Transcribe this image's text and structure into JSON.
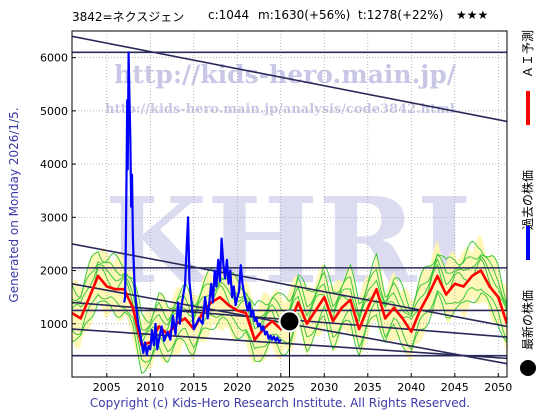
{
  "header": {
    "stock": "3842=ネクスジェン",
    "current": "c:1044",
    "median": "m:1630(+56%)",
    "target": "t:1278(+22%)",
    "rating": "★★★"
  },
  "side_label": "Generated on Monday 2026/1/5.",
  "copyright": "Copyright (c) Kids-Hero Research Institute. All Rights Reserved.",
  "watermark": {
    "url": "http://kids-hero.main.jp/",
    "analysis_url": "http://kids-hero.main.jp/analysis/code3842.html",
    "logo": "KHRI"
  },
  "legend": [
    {
      "label": "ＡＩ予測",
      "color": "#ff0000",
      "marker": "line"
    },
    {
      "label": "過去の株価",
      "color": "#0000ff",
      "marker": "line"
    },
    {
      "label": "最新の株価",
      "color": "#000000",
      "marker": "dot"
    }
  ],
  "chart_data": {
    "type": "line",
    "title": "3842=ネクスジェン",
    "xlim": [
      2001,
      2051
    ],
    "ylim": [
      0,
      6500
    ],
    "x_ticks": [
      2005,
      2010,
      2015,
      2020,
      2025,
      2030,
      2035,
      2040,
      2045,
      2050
    ],
    "y_ticks": [
      1000,
      2000,
      3000,
      4000,
      5000,
      6000
    ],
    "grid": true,
    "colors": {
      "history": "#0000ff",
      "forecast": "#ff0000",
      "band_green": "#3cc83c",
      "band_fill": "#fff6b0",
      "trend": "#2a2a5a",
      "grid": "#9a9a9a"
    },
    "series": [
      {
        "name": "過去の株価",
        "points": [
          [
            2007.0,
            1400
          ],
          [
            2007.1,
            1500
          ],
          [
            2007.2,
            2600
          ],
          [
            2007.3,
            4300
          ],
          [
            2007.35,
            5200
          ],
          [
            2007.4,
            3900
          ],
          [
            2007.5,
            6100
          ],
          [
            2007.6,
            5300
          ],
          [
            2007.7,
            4500
          ],
          [
            2007.8,
            3200
          ],
          [
            2007.9,
            3800
          ],
          [
            2008.0,
            2600
          ],
          [
            2008.1,
            2100
          ],
          [
            2008.2,
            1700
          ],
          [
            2008.4,
            1300
          ],
          [
            2008.6,
            1000
          ],
          [
            2008.8,
            850
          ],
          [
            2009.0,
            650
          ],
          [
            2009.2,
            450
          ],
          [
            2009.4,
            650
          ],
          [
            2009.6,
            420
          ],
          [
            2009.8,
            580
          ],
          [
            2010.0,
            520
          ],
          [
            2010.2,
            880
          ],
          [
            2010.4,
            600
          ],
          [
            2010.6,
            1000
          ],
          [
            2010.8,
            520
          ],
          [
            2011.0,
            700
          ],
          [
            2011.3,
            950
          ],
          [
            2011.6,
            680
          ],
          [
            2012.0,
            850
          ],
          [
            2012.3,
            700
          ],
          [
            2012.6,
            1150
          ],
          [
            2012.9,
            800
          ],
          [
            2013.2,
            1400
          ],
          [
            2013.4,
            1000
          ],
          [
            2013.6,
            1350
          ],
          [
            2014.0,
            1750
          ],
          [
            2014.2,
            2500
          ],
          [
            2014.35,
            3000
          ],
          [
            2014.5,
            1800
          ],
          [
            2014.8,
            1300
          ],
          [
            2015.0,
            900
          ],
          [
            2015.3,
            1000
          ],
          [
            2015.6,
            1100
          ],
          [
            2016.0,
            1000
          ],
          [
            2016.3,
            1500
          ],
          [
            2016.6,
            1100
          ],
          [
            2017.0,
            1750
          ],
          [
            2017.2,
            1400
          ],
          [
            2017.4,
            2000
          ],
          [
            2017.6,
            1700
          ],
          [
            2017.8,
            2200
          ],
          [
            2018.0,
            1800
          ],
          [
            2018.2,
            2600
          ],
          [
            2018.4,
            2100
          ],
          [
            2018.6,
            1850
          ],
          [
            2018.8,
            2200
          ],
          [
            2019.0,
            1750
          ],
          [
            2019.2,
            2000
          ],
          [
            2019.4,
            1500
          ],
          [
            2019.6,
            1700
          ],
          [
            2019.8,
            1350
          ],
          [
            2020.0,
            1500
          ],
          [
            2020.2,
            1600
          ],
          [
            2020.4,
            2100
          ],
          [
            2020.6,
            1750
          ],
          [
            2020.8,
            1550
          ],
          [
            2021.0,
            1400
          ],
          [
            2021.2,
            1250
          ],
          [
            2021.4,
            1400
          ],
          [
            2021.6,
            1150
          ],
          [
            2021.8,
            1250
          ],
          [
            2022.0,
            1050
          ],
          [
            2022.2,
            1100
          ],
          [
            2022.4,
            950
          ],
          [
            2022.6,
            1000
          ],
          [
            2022.8,
            880
          ],
          [
            2023.0,
            950
          ],
          [
            2023.2,
            800
          ],
          [
            2023.4,
            850
          ],
          [
            2023.6,
            720
          ],
          [
            2023.8,
            780
          ],
          [
            2024.0,
            700
          ],
          [
            2024.2,
            760
          ],
          [
            2024.4,
            680
          ],
          [
            2024.6,
            740
          ],
          [
            2024.8,
            660
          ],
          [
            2025.0,
            700
          ]
        ]
      },
      {
        "name": "ＡＩ予測",
        "points": [
          [
            2001.0,
            1200
          ],
          [
            2002.0,
            1100
          ],
          [
            2003.0,
            1500
          ],
          [
            2004.0,
            1900
          ],
          [
            2005.0,
            1700
          ],
          [
            2006.0,
            1650
          ],
          [
            2007.0,
            1650
          ],
          [
            2008.0,
            1300
          ],
          [
            2009.0,
            600
          ],
          [
            2010.0,
            650
          ],
          [
            2011.0,
            950
          ],
          [
            2012.0,
            800
          ],
          [
            2013.0,
            1000
          ],
          [
            2014.0,
            1100
          ],
          [
            2015.0,
            900
          ],
          [
            2016.0,
            1200
          ],
          [
            2017.0,
            1400
          ],
          [
            2018.0,
            1500
          ],
          [
            2019.0,
            1350
          ],
          [
            2020.0,
            1250
          ],
          [
            2021.0,
            1200
          ],
          [
            2022.0,
            700
          ],
          [
            2023.0,
            900
          ],
          [
            2024.0,
            1050
          ],
          [
            2025.0,
            900
          ],
          [
            2026.0,
            1000
          ],
          [
            2027.0,
            1400
          ],
          [
            2028.0,
            1000
          ],
          [
            2029.0,
            1250
          ],
          [
            2030.0,
            1500
          ],
          [
            2031.0,
            1050
          ],
          [
            2032.0,
            1300
          ],
          [
            2033.0,
            1450
          ],
          [
            2034.0,
            900
          ],
          [
            2035.0,
            1300
          ],
          [
            2036.0,
            1650
          ],
          [
            2037.0,
            1100
          ],
          [
            2038.0,
            1300
          ],
          [
            2039.0,
            1100
          ],
          [
            2040.0,
            850
          ],
          [
            2041.0,
            1250
          ],
          [
            2042.0,
            1550
          ],
          [
            2043.0,
            1900
          ],
          [
            2044.0,
            1550
          ],
          [
            2045.0,
            1750
          ],
          [
            2046.0,
            1700
          ],
          [
            2047.0,
            1900
          ],
          [
            2048.0,
            2000
          ],
          [
            2049.0,
            1700
          ],
          [
            2050.0,
            1500
          ],
          [
            2051.0,
            1000
          ]
        ]
      }
    ],
    "latest": {
      "name": "最新の株価",
      "x": 2026.0,
      "y": 1044
    },
    "trend_lines": [
      [
        [
          2001,
          6400
        ],
        [
          2051,
          4800
        ]
      ],
      [
        [
          2001,
          6100
        ],
        [
          2051,
          6100
        ]
      ],
      [
        [
          2001,
          2500
        ],
        [
          2051,
          950
        ]
      ],
      [
        [
          2001,
          1750
        ],
        [
          2051,
          250
        ]
      ],
      [
        [
          2001,
          1400
        ],
        [
          2051,
          750
        ]
      ],
      [
        [
          2001,
          900
        ],
        [
          2051,
          350
        ]
      ],
      [
        [
          2001,
          2050
        ],
        [
          2051,
          2050
        ]
      ],
      [
        [
          2001,
          1250
        ],
        [
          2051,
          1250
        ]
      ],
      [
        [
          2001,
          400
        ],
        [
          2051,
          400
        ]
      ]
    ]
  }
}
